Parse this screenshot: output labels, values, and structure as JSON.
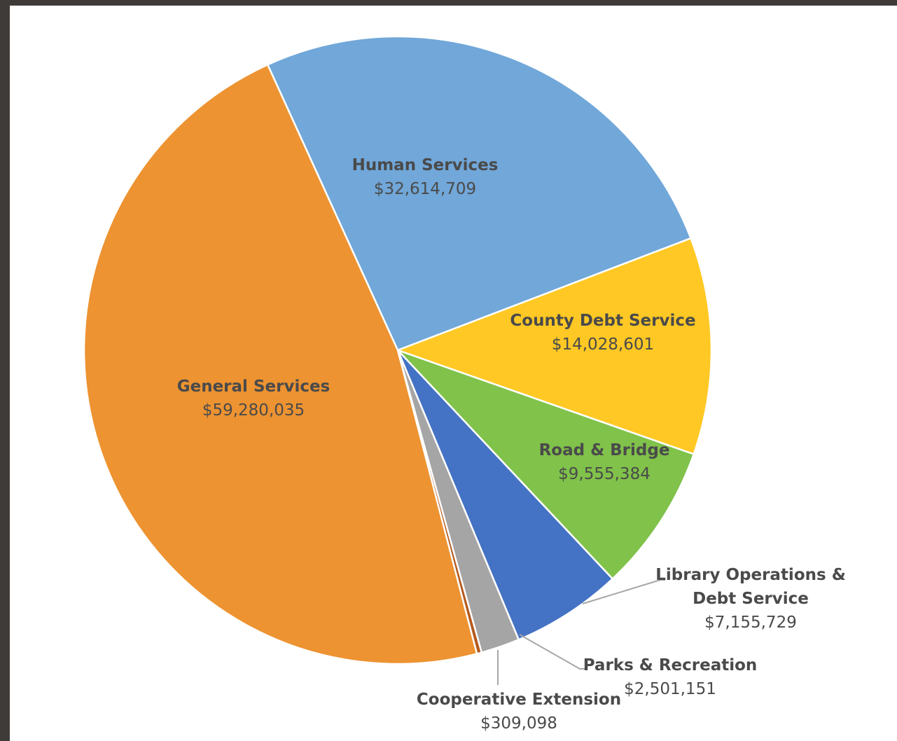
{
  "chart_data": {
    "type": "pie",
    "slices": [
      {
        "label": "Human Services",
        "value_label": "$32,614,709",
        "value": 32614709,
        "color": "#71a7d9"
      },
      {
        "label": "County Debt Service",
        "value_label": "$14,028,601",
        "value": 14028601,
        "color": "#ffc824"
      },
      {
        "label": "Road & Bridge",
        "value_label": "$9,555,384",
        "value": 9555384,
        "color": "#80c24a"
      },
      {
        "label": "Library Operations & Debt Service",
        "label_lines": [
          "Library Operations &",
          "Debt Service"
        ],
        "value_label": "$7,155,729",
        "value": 7155729,
        "color": "#4472c4"
      },
      {
        "label": "Parks & Recreation",
        "value_label": "$2,501,151",
        "value": 2501151,
        "color": "#a5a5a5"
      },
      {
        "label": "Cooperative Extension",
        "value_label": "$309,098",
        "value": 309098,
        "color": "#b45a1e"
      },
      {
        "label": "General Services",
        "value_label": "$59,280,035",
        "value": 59280035,
        "color": "#ed9331"
      }
    ],
    "start_angle_deg": -24.5,
    "direction": "clockwise",
    "slice_borders": "#ffffff",
    "leader_line_color": "#a6a6a6",
    "legend": "none"
  }
}
